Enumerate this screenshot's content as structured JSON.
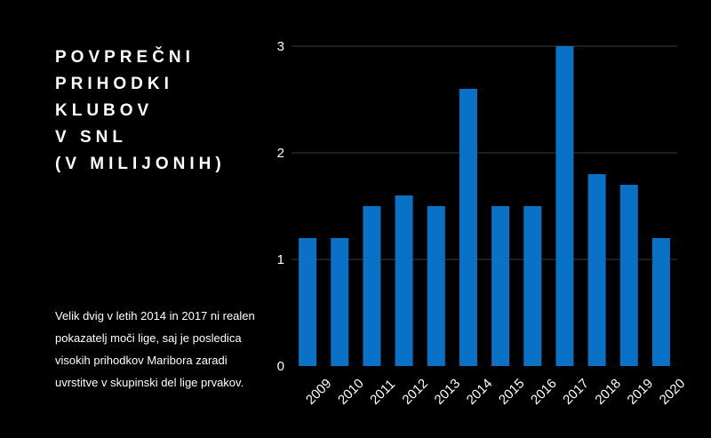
{
  "title": "Povprečni\nprihodki\nklubov\nv SNL\n(v milijonih)",
  "note": "Velik dvig v letih 2014 in 2017 ni realen pokazatelj moči lige, saj je posledica visokih prihodkov Maribora zaradi uvrstitve v skupinski del lige prvakov.",
  "colors": {
    "background": "#000000",
    "bar": "#0a72c6",
    "grid": "#3a3a3a",
    "text": "#ffffff"
  },
  "chart_data": {
    "type": "bar",
    "categories": [
      "2009",
      "2010",
      "2011",
      "2012",
      "2013",
      "2014",
      "2015",
      "2016",
      "2017",
      "2018",
      "2019",
      "2020"
    ],
    "values": [
      1.2,
      1.2,
      1.5,
      1.6,
      1.5,
      2.6,
      1.5,
      1.5,
      3.0,
      1.8,
      1.7,
      1.2
    ],
    "ylim": [
      0,
      3
    ],
    "yticks": [
      "0",
      "1",
      "2",
      "3"
    ],
    "grid": true,
    "title": "Povprečni prihodki klubov v SNL (v milijonih)"
  }
}
